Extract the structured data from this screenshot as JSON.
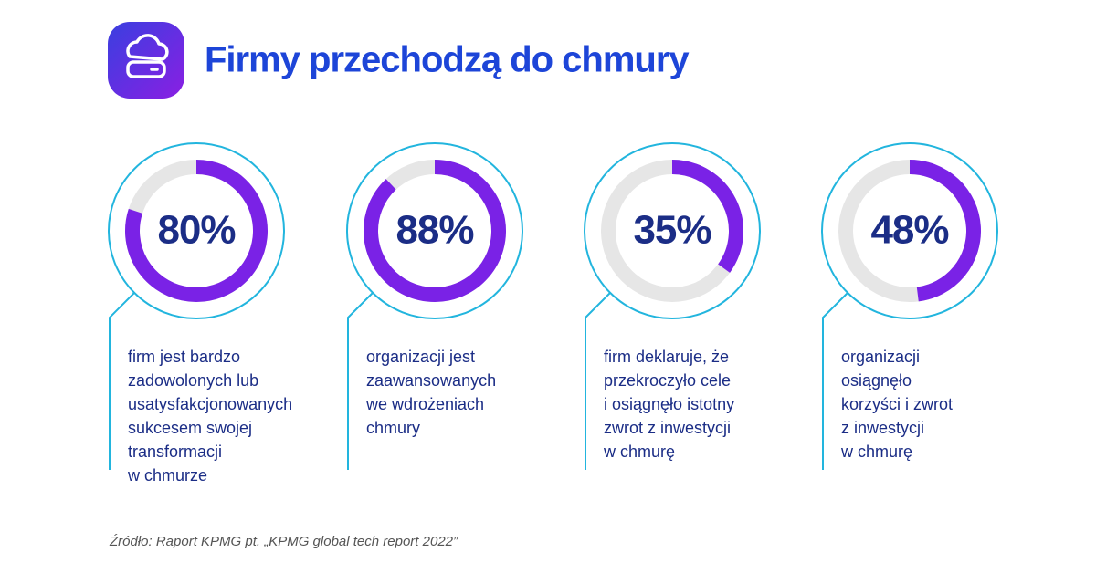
{
  "title": "Firmy przechodzą do chmury",
  "source": "Źródło: Raport KPMG pt. „KPMG global tech report 2022”",
  "chart_data": [
    {
      "type": "donut",
      "values": [
        80
      ],
      "value_labels": [
        "80%"
      ],
      "ylim": [
        0,
        100
      ],
      "color": "#7a22e6",
      "track_color": "#e6e6e6",
      "description": [
        "firm jest bardzo",
        "zadowolonych lub",
        "usatysfakcjonowanych",
        "sukcesem swojej",
        "transformacji",
        "w chmurze"
      ]
    },
    {
      "type": "donut",
      "values": [
        88
      ],
      "value_labels": [
        "88%"
      ],
      "ylim": [
        0,
        100
      ],
      "color": "#7a22e6",
      "track_color": "#e6e6e6",
      "description": [
        "organizacji jest",
        "zaawansowanych",
        "we wdrożeniach",
        "chmury"
      ]
    },
    {
      "type": "donut",
      "values": [
        35
      ],
      "value_labels": [
        "35%"
      ],
      "ylim": [
        0,
        100
      ],
      "color": "#7a22e6",
      "track_color": "#e6e6e6",
      "description": [
        "firm deklaruje, że",
        "przekroczyło cele",
        "i osiągnęło istotny",
        "zwrot z inwestycji",
        "w chmurę"
      ]
    },
    {
      "type": "donut",
      "values": [
        48
      ],
      "value_labels": [
        "48%"
      ],
      "ylim": [
        0,
        100
      ],
      "color": "#7a22e6",
      "track_color": "#e6e6e6",
      "description": [
        "organizacji",
        "osiągnęło",
        "korzyści i zwrot",
        "z inwestycji",
        "w chmurę"
      ]
    }
  ]
}
